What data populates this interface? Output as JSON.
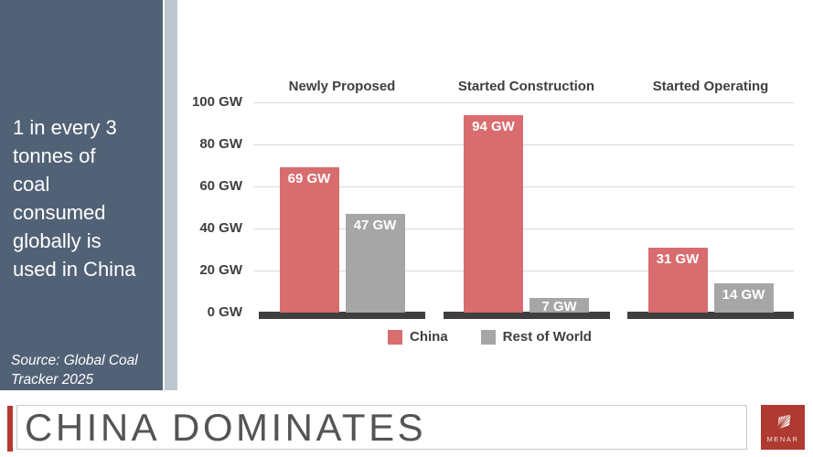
{
  "sidebar": {
    "headline_lines": [
      "1 in every 3",
      "tonnes of",
      "coal",
      "consumed",
      "globally is",
      "used in China"
    ],
    "source_lines": [
      "Source: Global Coal",
      "Tracker 2025"
    ]
  },
  "footer": {
    "title": "CHINA DOMINATES",
    "logo_text": "MENAR",
    "logo_icon": "fan-icon"
  },
  "colors": {
    "sidebar_bg": "#526276",
    "sidebar_stripe": "#BCC7CE",
    "china": "#D96C6E",
    "rest_of_world": "#A6A6A6",
    "axis_baseline": "#3F3F3F",
    "gridline": "#D9D9D9",
    "chart_text": "#3F3F3F",
    "title_text": "#545454",
    "accent_red": "#B4392C",
    "logo_bg": "#AF3A31"
  },
  "chart_data": {
    "type": "bar",
    "title": "",
    "categories": [
      "Newly Proposed",
      "Started Construction",
      "Started Operating"
    ],
    "series": [
      {
        "name": "China",
        "color_key": "china",
        "values": [
          69,
          94,
          31
        ]
      },
      {
        "name": "Rest of World",
        "color_key": "rest_of_world",
        "values": [
          47,
          7,
          14
        ]
      }
    ],
    "unit": "GW",
    "value_label_format": "{v} GW",
    "y_ticks": [
      0,
      20,
      40,
      60,
      80,
      100
    ],
    "y_tick_format": "{v} GW",
    "ylim": [
      0,
      100
    ],
    "grid": true,
    "legend_position": "bottom",
    "value_labels_inside_bars": true
  }
}
